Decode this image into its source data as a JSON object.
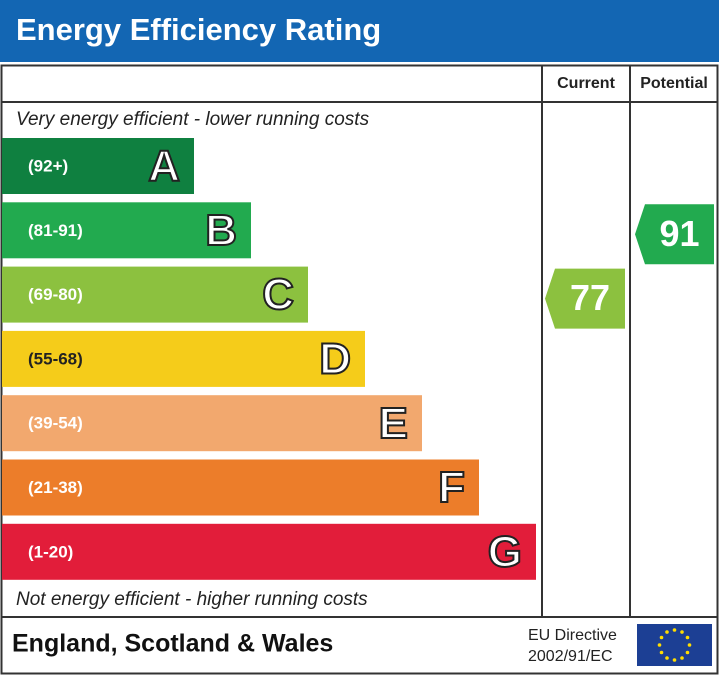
{
  "title": "Energy Efficiency Rating",
  "columns": [
    "Current",
    "Potential"
  ],
  "top_note": "Very energy efficient - lower running costs",
  "bottom_note": "Not energy efficient - higher running costs",
  "bands": [
    {
      "range": "(92+)",
      "letter": "A",
      "color": "#0f8040"
    },
    {
      "range": "(81-91)",
      "letter": "B",
      "color": "#22aa4f"
    },
    {
      "range": "(69-80)",
      "letter": "C",
      "color": "#8cc13f"
    },
    {
      "range": "(55-68)",
      "letter": "D",
      "color": "#f5cc1a"
    },
    {
      "range": "(39-54)",
      "letter": "E",
      "color": "#f2a86e"
    },
    {
      "range": "(21-38)",
      "letter": "F",
      "color": "#ec7d2a"
    },
    {
      "range": "(1-20)",
      "letter": "G",
      "color": "#e21d3a"
    }
  ],
  "current": {
    "value": 77,
    "color": "#8cc13f"
  },
  "potential": {
    "value": 91,
    "color": "#22aa4f"
  },
  "footer": {
    "region": "England, Scotland & Wales",
    "directive": [
      "EU Directive",
      "2002/91/EC"
    ]
  }
}
